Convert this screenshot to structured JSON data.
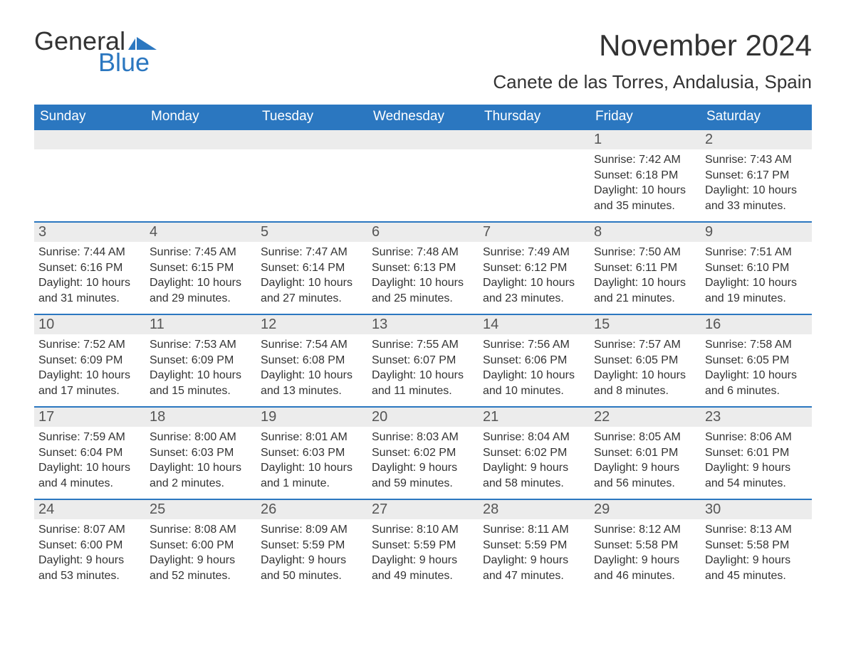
{
  "logo": {
    "text_general": "General",
    "text_blue": "Blue",
    "flag_color": "#2b77c0"
  },
  "title": "November 2024",
  "location": "Canete de las Torres, Andalusia, Spain",
  "colors": {
    "header_bg": "#2b77c0",
    "header_text": "#ffffff",
    "row_border": "#2b77c0",
    "daynum_bg": "#ececec",
    "body_text": "#333333",
    "page_bg": "#ffffff"
  },
  "typography": {
    "month_title_fontsize": 42,
    "location_fontsize": 26,
    "dow_fontsize": 19,
    "daynum_fontsize": 20,
    "body_fontsize": 16
  },
  "days_of_week": [
    "Sunday",
    "Monday",
    "Tuesday",
    "Wednesday",
    "Thursday",
    "Friday",
    "Saturday"
  ],
  "weeks": [
    [
      null,
      null,
      null,
      null,
      null,
      {
        "n": "1",
        "sunrise": "Sunrise: 7:42 AM",
        "sunset": "Sunset: 6:18 PM",
        "dl1": "Daylight: 10 hours",
        "dl2": "and 35 minutes."
      },
      {
        "n": "2",
        "sunrise": "Sunrise: 7:43 AM",
        "sunset": "Sunset: 6:17 PM",
        "dl1": "Daylight: 10 hours",
        "dl2": "and 33 minutes."
      }
    ],
    [
      {
        "n": "3",
        "sunrise": "Sunrise: 7:44 AM",
        "sunset": "Sunset: 6:16 PM",
        "dl1": "Daylight: 10 hours",
        "dl2": "and 31 minutes."
      },
      {
        "n": "4",
        "sunrise": "Sunrise: 7:45 AM",
        "sunset": "Sunset: 6:15 PM",
        "dl1": "Daylight: 10 hours",
        "dl2": "and 29 minutes."
      },
      {
        "n": "5",
        "sunrise": "Sunrise: 7:47 AM",
        "sunset": "Sunset: 6:14 PM",
        "dl1": "Daylight: 10 hours",
        "dl2": "and 27 minutes."
      },
      {
        "n": "6",
        "sunrise": "Sunrise: 7:48 AM",
        "sunset": "Sunset: 6:13 PM",
        "dl1": "Daylight: 10 hours",
        "dl2": "and 25 minutes."
      },
      {
        "n": "7",
        "sunrise": "Sunrise: 7:49 AM",
        "sunset": "Sunset: 6:12 PM",
        "dl1": "Daylight: 10 hours",
        "dl2": "and 23 minutes."
      },
      {
        "n": "8",
        "sunrise": "Sunrise: 7:50 AM",
        "sunset": "Sunset: 6:11 PM",
        "dl1": "Daylight: 10 hours",
        "dl2": "and 21 minutes."
      },
      {
        "n": "9",
        "sunrise": "Sunrise: 7:51 AM",
        "sunset": "Sunset: 6:10 PM",
        "dl1": "Daylight: 10 hours",
        "dl2": "and 19 minutes."
      }
    ],
    [
      {
        "n": "10",
        "sunrise": "Sunrise: 7:52 AM",
        "sunset": "Sunset: 6:09 PM",
        "dl1": "Daylight: 10 hours",
        "dl2": "and 17 minutes."
      },
      {
        "n": "11",
        "sunrise": "Sunrise: 7:53 AM",
        "sunset": "Sunset: 6:09 PM",
        "dl1": "Daylight: 10 hours",
        "dl2": "and 15 minutes."
      },
      {
        "n": "12",
        "sunrise": "Sunrise: 7:54 AM",
        "sunset": "Sunset: 6:08 PM",
        "dl1": "Daylight: 10 hours",
        "dl2": "and 13 minutes."
      },
      {
        "n": "13",
        "sunrise": "Sunrise: 7:55 AM",
        "sunset": "Sunset: 6:07 PM",
        "dl1": "Daylight: 10 hours",
        "dl2": "and 11 minutes."
      },
      {
        "n": "14",
        "sunrise": "Sunrise: 7:56 AM",
        "sunset": "Sunset: 6:06 PM",
        "dl1": "Daylight: 10 hours",
        "dl2": "and 10 minutes."
      },
      {
        "n": "15",
        "sunrise": "Sunrise: 7:57 AM",
        "sunset": "Sunset: 6:05 PM",
        "dl1": "Daylight: 10 hours",
        "dl2": "and 8 minutes."
      },
      {
        "n": "16",
        "sunrise": "Sunrise: 7:58 AM",
        "sunset": "Sunset: 6:05 PM",
        "dl1": "Daylight: 10 hours",
        "dl2": "and 6 minutes."
      }
    ],
    [
      {
        "n": "17",
        "sunrise": "Sunrise: 7:59 AM",
        "sunset": "Sunset: 6:04 PM",
        "dl1": "Daylight: 10 hours",
        "dl2": "and 4 minutes."
      },
      {
        "n": "18",
        "sunrise": "Sunrise: 8:00 AM",
        "sunset": "Sunset: 6:03 PM",
        "dl1": "Daylight: 10 hours",
        "dl2": "and 2 minutes."
      },
      {
        "n": "19",
        "sunrise": "Sunrise: 8:01 AM",
        "sunset": "Sunset: 6:03 PM",
        "dl1": "Daylight: 10 hours",
        "dl2": "and 1 minute."
      },
      {
        "n": "20",
        "sunrise": "Sunrise: 8:03 AM",
        "sunset": "Sunset: 6:02 PM",
        "dl1": "Daylight: 9 hours",
        "dl2": "and 59 minutes."
      },
      {
        "n": "21",
        "sunrise": "Sunrise: 8:04 AM",
        "sunset": "Sunset: 6:02 PM",
        "dl1": "Daylight: 9 hours",
        "dl2": "and 58 minutes."
      },
      {
        "n": "22",
        "sunrise": "Sunrise: 8:05 AM",
        "sunset": "Sunset: 6:01 PM",
        "dl1": "Daylight: 9 hours",
        "dl2": "and 56 minutes."
      },
      {
        "n": "23",
        "sunrise": "Sunrise: 8:06 AM",
        "sunset": "Sunset: 6:01 PM",
        "dl1": "Daylight: 9 hours",
        "dl2": "and 54 minutes."
      }
    ],
    [
      {
        "n": "24",
        "sunrise": "Sunrise: 8:07 AM",
        "sunset": "Sunset: 6:00 PM",
        "dl1": "Daylight: 9 hours",
        "dl2": "and 53 minutes."
      },
      {
        "n": "25",
        "sunrise": "Sunrise: 8:08 AM",
        "sunset": "Sunset: 6:00 PM",
        "dl1": "Daylight: 9 hours",
        "dl2": "and 52 minutes."
      },
      {
        "n": "26",
        "sunrise": "Sunrise: 8:09 AM",
        "sunset": "Sunset: 5:59 PM",
        "dl1": "Daylight: 9 hours",
        "dl2": "and 50 minutes."
      },
      {
        "n": "27",
        "sunrise": "Sunrise: 8:10 AM",
        "sunset": "Sunset: 5:59 PM",
        "dl1": "Daylight: 9 hours",
        "dl2": "and 49 minutes."
      },
      {
        "n": "28",
        "sunrise": "Sunrise: 8:11 AM",
        "sunset": "Sunset: 5:59 PM",
        "dl1": "Daylight: 9 hours",
        "dl2": "and 47 minutes."
      },
      {
        "n": "29",
        "sunrise": "Sunrise: 8:12 AM",
        "sunset": "Sunset: 5:58 PM",
        "dl1": "Daylight: 9 hours",
        "dl2": "and 46 minutes."
      },
      {
        "n": "30",
        "sunrise": "Sunrise: 8:13 AM",
        "sunset": "Sunset: 5:58 PM",
        "dl1": "Daylight: 9 hours",
        "dl2": "and 45 minutes."
      }
    ]
  ]
}
